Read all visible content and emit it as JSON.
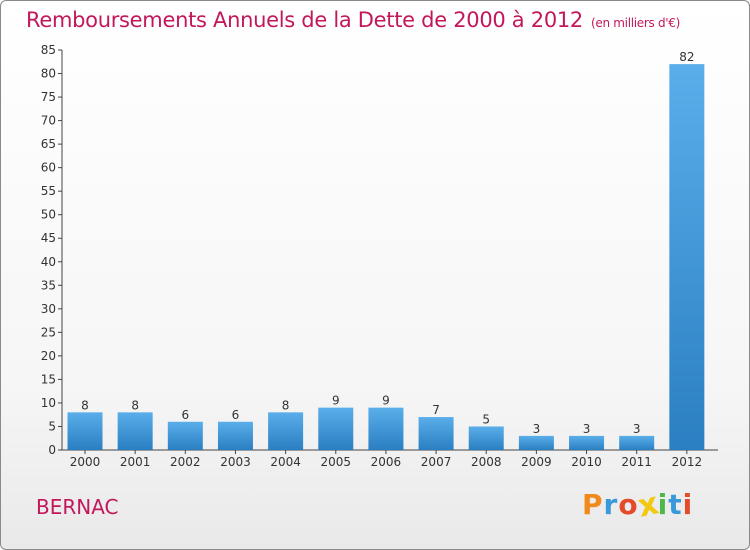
{
  "header": {
    "title": "Remboursements Annuels de la Dette de 2000 à 2012",
    "unit": "(en milliers d'€)"
  },
  "footer": {
    "commune": "BERNAC",
    "logo_letters": [
      "P",
      "r",
      "o",
      "x",
      "i",
      "t",
      "i"
    ]
  },
  "colors": {
    "title": "#c2185b",
    "bar": "#3f97d9",
    "logo": [
      "#f08a1c",
      "#3a9ad9",
      "#e34b2a",
      "#f2c811",
      "#4db848",
      "#3a9ad9",
      "#e34b2a"
    ]
  },
  "chart_data": {
    "type": "bar",
    "title": "Remboursements Annuels de la Dette de 2000 à 2012",
    "xlabel": "",
    "ylabel": "",
    "categories": [
      "2000",
      "2001",
      "2002",
      "2003",
      "2004",
      "2005",
      "2006",
      "2007",
      "2008",
      "2009",
      "2010",
      "2011",
      "2012"
    ],
    "values": [
      8,
      8,
      6,
      6,
      8,
      9,
      9,
      7,
      5,
      3,
      3,
      3,
      82
    ],
    "ylim": [
      0,
      85
    ],
    "yticks": [
      0,
      5,
      10,
      15,
      20,
      25,
      30,
      35,
      40,
      45,
      50,
      55,
      60,
      65,
      70,
      75,
      80,
      85
    ],
    "grid": false
  }
}
